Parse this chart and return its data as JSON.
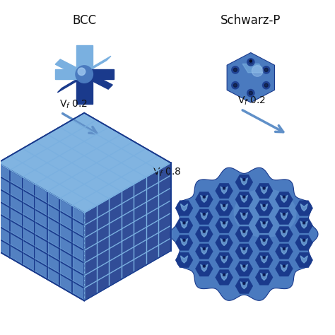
{
  "background_color": "#ffffff",
  "title_bcc": "BCC",
  "title_schwarz": "Schwarz-P",
  "label_vf02_left": "V$_f$ 0.2",
  "label_vf08": "V$_f$ 0.8",
  "label_vf02_right": "V$_f$ 0.2",
  "primary_blue": "#1a3a8c",
  "light_blue": "#4a7abf",
  "lighter_blue": "#7ab0e0",
  "highlight_blue": "#a0c8f0",
  "text_color": "#111111",
  "arrow_color": "#6090c8"
}
